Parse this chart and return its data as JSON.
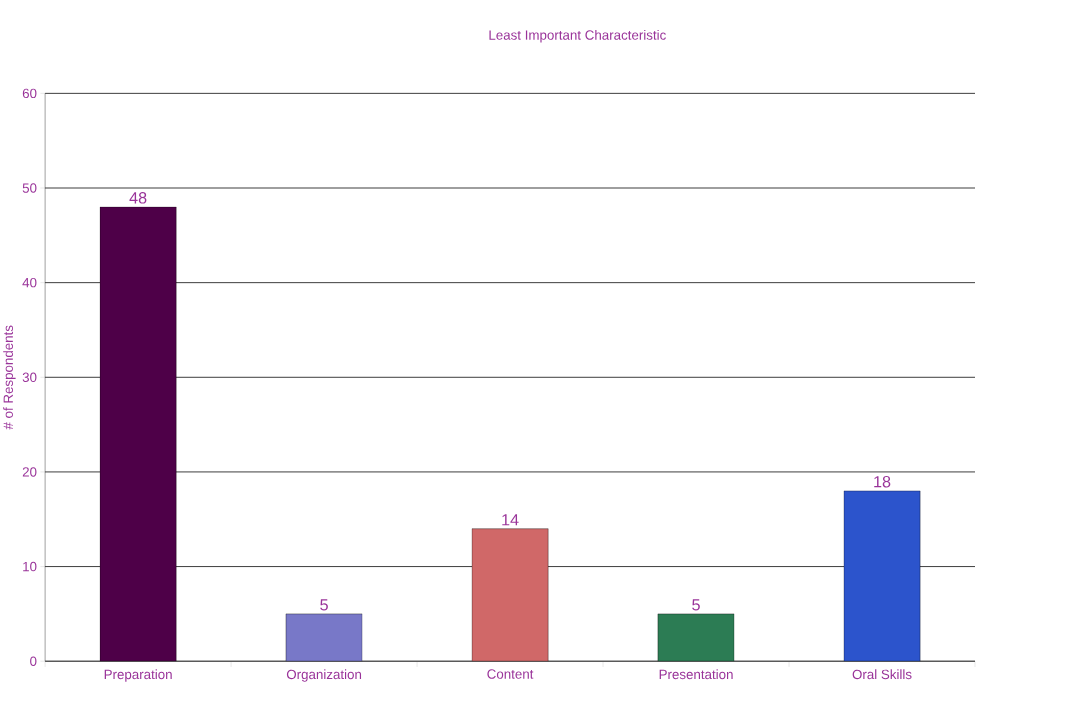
{
  "chart_data": {
    "type": "bar",
    "title": "Least Important Characteristic",
    "ylabel": "# of Respondents",
    "categories": [
      "Preparation",
      "Organization",
      "Content",
      "Presentation",
      "Oral Skills"
    ],
    "values": [
      48,
      5,
      14,
      5,
      18
    ],
    "colors": [
      "#4e0048",
      "#7878c8",
      "#d06868",
      "#2c7c54",
      "#2c54cc"
    ],
    "ylim": [
      0,
      60
    ],
    "yticks": [
      0,
      10,
      20,
      30,
      40,
      50,
      60
    ],
    "grid": "y",
    "data_labels": true
  }
}
